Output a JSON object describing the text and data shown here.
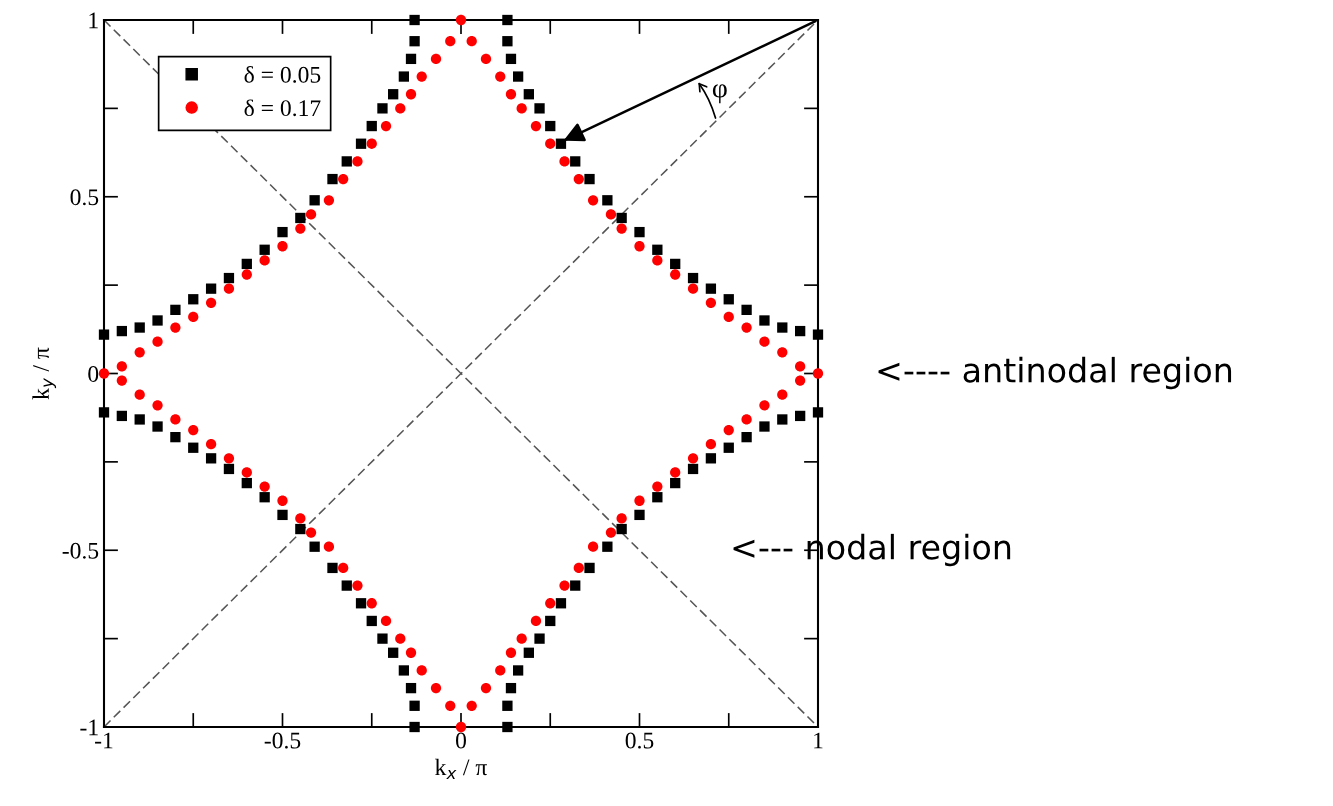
{
  "chart_data": {
    "type": "scatter",
    "xlabel": "k$_{x}$ / π",
    "ylabel": "k$_{y}$ / π",
    "xlim": [
      -1,
      1
    ],
    "ylim": [
      -1,
      1
    ],
    "xticks": [
      -1,
      {
        "value": -0.75,
        "label": null
      },
      -0.5,
      {
        "value": -0.25,
        "label": null
      },
      0,
      {
        "value": 0.25,
        "label": null
      },
      0.5,
      {
        "value": 0.75,
        "label": null
      },
      1
    ],
    "yticks": [
      -1,
      {
        "value": -0.75,
        "label": null
      },
      -0.5,
      {
        "value": -0.25,
        "label": null
      },
      0,
      {
        "value": 0.25,
        "label": null
      },
      0.5,
      {
        "value": 0.75,
        "label": null
      },
      1
    ],
    "grid": false,
    "legend": "top left",
    "annotations": [
      "φ",
      "<---- antinodal region",
      "<--- nodal region"
    ],
    "series": [
      {
        "name": "δ = 0.05",
        "color": "#000000",
        "marker": "square",
        "x": [
          0.13,
          0.13,
          0.14,
          0.16,
          0.19,
          0.22,
          0.25,
          0.28,
          0.32,
          0.36,
          0.41,
          0.45,
          0.5,
          0.55,
          0.6,
          0.65,
          0.7,
          0.75,
          0.8,
          0.85,
          0.9,
          0.95,
          1,
          0.13,
          0.13,
          0.14,
          0.16,
          0.19,
          0.22,
          0.25,
          0.28,
          0.32,
          0.36,
          0.41,
          0.45,
          0.5,
          0.55,
          0.6,
          0.65,
          0.7,
          0.75,
          0.8,
          0.85,
          0.9,
          0.95,
          1,
          -0.13,
          -0.13,
          -0.14,
          -0.16,
          -0.19,
          -0.22,
          -0.25,
          -0.28,
          -0.32,
          -0.36,
          -0.41,
          -0.45,
          -0.5,
          -0.55,
          -0.6,
          -0.65,
          -0.7,
          -0.75,
          -0.8,
          -0.85,
          -0.9,
          -0.95,
          -1,
          -0.13,
          -0.13,
          -0.14,
          -0.16,
          -0.19,
          -0.22,
          -0.25,
          -0.28,
          -0.32,
          -0.36,
          -0.41,
          -0.45,
          -0.5,
          -0.55,
          -0.6,
          -0.65,
          -0.7,
          -0.75,
          -0.8,
          -0.85,
          -0.9,
          -0.95,
          -1
        ],
        "values": [
          1,
          0.94,
          0.89,
          0.84,
          0.79,
          0.75,
          0.7,
          0.65,
          0.6,
          0.55,
          0.49,
          0.44,
          0.4,
          0.35,
          0.31,
          0.27,
          0.24,
          0.21,
          0.18,
          0.15,
          0.13,
          0.12,
          0.11,
          -1,
          -0.94,
          -0.89,
          -0.84,
          -0.79,
          -0.75,
          -0.7,
          -0.65,
          -0.6,
          -0.55,
          -0.49,
          -0.44,
          -0.4,
          -0.35,
          -0.31,
          -0.27,
          -0.24,
          -0.21,
          -0.18,
          -0.15,
          -0.13,
          -0.12,
          -0.11,
          1,
          0.94,
          0.89,
          0.84,
          0.79,
          0.75,
          0.7,
          0.65,
          0.6,
          0.55,
          0.49,
          0.44,
          0.4,
          0.35,
          0.31,
          0.27,
          0.24,
          0.21,
          0.18,
          0.15,
          0.13,
          0.12,
          0.11,
          -1,
          -0.94,
          -0.89,
          -0.84,
          -0.79,
          -0.75,
          -0.7,
          -0.65,
          -0.6,
          -0.55,
          -0.49,
          -0.44,
          -0.4,
          -0.35,
          -0.31,
          -0.27,
          -0.24,
          -0.21,
          -0.18,
          -0.15,
          -0.13,
          -0.12,
          -0.11
        ]
      },
      {
        "name": "δ = 0.17",
        "color": "#ff0000",
        "marker": "circle",
        "x": [
          0,
          0.03,
          0.07,
          0.11,
          0.14,
          0.17,
          0.21,
          0.25,
          0.29,
          0.33,
          0.37,
          0.42,
          0.45,
          0.5,
          0.55,
          0.6,
          0.65,
          0.7,
          0.75,
          0.8,
          0.85,
          0.9,
          0.95,
          1,
          0,
          0.03,
          0.07,
          0.11,
          0.14,
          0.17,
          0.21,
          0.25,
          0.29,
          0.33,
          0.37,
          0.42,
          0.45,
          0.5,
          0.55,
          0.6,
          0.65,
          0.7,
          0.75,
          0.8,
          0.85,
          0.9,
          0.95,
          -0.03,
          -0.07,
          -0.11,
          -0.14,
          -0.17,
          -0.21,
          -0.25,
          -0.29,
          -0.33,
          -0.37,
          -0.42,
          -0.45,
          -0.5,
          -0.55,
          -0.6,
          -0.65,
          -0.7,
          -0.75,
          -0.8,
          -0.85,
          -0.9,
          -0.95,
          -0.03,
          -0.07,
          -0.11,
          -0.14,
          -0.17,
          -0.21,
          -0.25,
          -0.29,
          -0.33,
          -0.37,
          -0.42,
          -0.45,
          -0.5,
          -0.55,
          -0.6,
          -0.65,
          -0.7,
          -0.75,
          -0.8,
          -0.85,
          -0.9,
          -0.95,
          -1
        ],
        "values": [
          1,
          0.94,
          0.89,
          0.84,
          0.79,
          0.75,
          0.7,
          0.65,
          0.6,
          0.55,
          0.49,
          0.45,
          0.41,
          0.36,
          0.32,
          0.28,
          0.24,
          0.2,
          0.16,
          0.13,
          0.09,
          0.06,
          0.02,
          0,
          -1,
          -0.94,
          -0.89,
          -0.84,
          -0.79,
          -0.75,
          -0.7,
          -0.65,
          -0.6,
          -0.55,
          -0.49,
          -0.45,
          -0.41,
          -0.36,
          -0.32,
          -0.28,
          -0.24,
          -0.2,
          -0.16,
          -0.13,
          -0.09,
          -0.06,
          -0.02,
          -0.94,
          -0.89,
          -0.84,
          -0.79,
          -0.75,
          -0.7,
          -0.65,
          -0.6,
          -0.55,
          -0.49,
          -0.45,
          -0.41,
          -0.36,
          -0.32,
          -0.28,
          -0.24,
          -0.2,
          -0.16,
          -0.13,
          -0.09,
          -0.06,
          -0.02,
          0.94,
          0.89,
          0.84,
          0.79,
          0.75,
          0.7,
          0.65,
          0.6,
          0.55,
          0.49,
          0.45,
          0.41,
          0.36,
          0.32,
          0.28,
          0.24,
          0.2,
          0.16,
          0.13,
          0.09,
          0.06,
          0.02,
          0
        ]
      },
      {
        "type": "line",
        "color": "#555555",
        "line_style": "dashed",
        "marker": "none",
        "x": [
          -1,
          1
        ],
        "values": [
          -1,
          1
        ]
      },
      {
        "type": "line",
        "color": "#555555",
        "line_style": "dashed",
        "marker": "none",
        "x": [
          -1,
          1
        ],
        "values": [
          1,
          -1
        ]
      }
    ]
  }
}
